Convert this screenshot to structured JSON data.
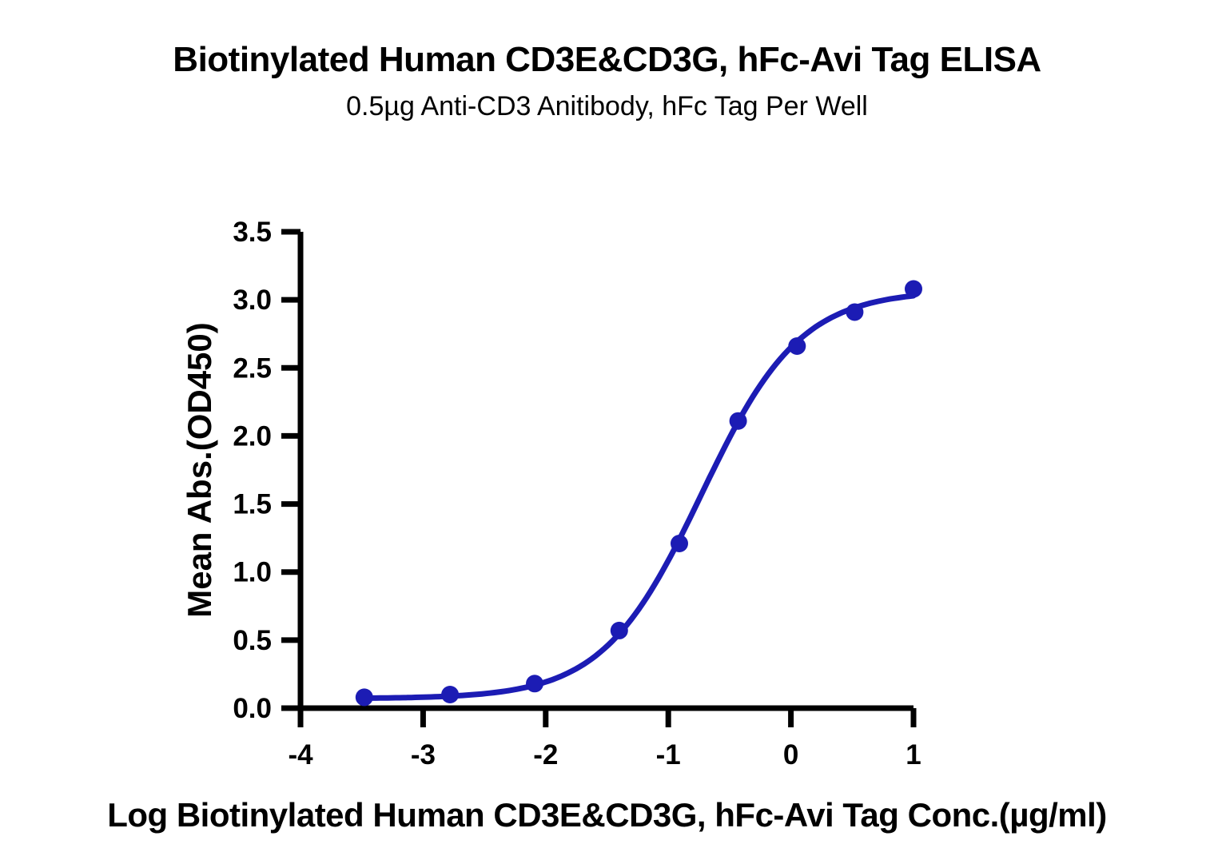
{
  "chart_data": {
    "type": "scatter",
    "title": "Biotinylated Human CD3E&CD3G, hFc-Avi Tag ELISA",
    "subtitle": "0.5µg Anti-CD3 Anitibody, hFc Tag Per Well",
    "xlabel": "Log Biotinylated Human CD3E&CD3G, hFc-Avi Tag Conc.(µg/ml)",
    "ylabel": "Mean Abs.(OD450)",
    "xlim": [
      -4,
      1
    ],
    "ylim": [
      0,
      3.5
    ],
    "x_ticks": [
      -4,
      -3,
      -2,
      -1,
      0,
      1
    ],
    "y_ticks": [
      0,
      0.5,
      1,
      1.5,
      2,
      2.5,
      3,
      3.5
    ],
    "grid": false,
    "legend": "none",
    "axis_color": "#000000",
    "background_color": "#ffffff",
    "series": [
      {
        "name": "Biotinylated Human CD3E&CD3G, hFc-Avi Tag",
        "color": "#1C1CB4",
        "marker": "circle",
        "points": [
          {
            "x": -3.48,
            "y": 0.08
          },
          {
            "x": -2.78,
            "y": 0.1
          },
          {
            "x": -2.09,
            "y": 0.18
          },
          {
            "x": -1.4,
            "y": 0.57
          },
          {
            "x": -0.91,
            "y": 1.21
          },
          {
            "x": -0.43,
            "y": 2.11
          },
          {
            "x": 0.05,
            "y": 2.66
          },
          {
            "x": 0.52,
            "y": 2.91
          },
          {
            "x": 1.0,
            "y": 3.08
          }
        ],
        "fit_curve_4pl": {
          "bottom": 0.07,
          "top": 3.07,
          "log_ec50": -0.73,
          "hill_slope": 1.08
        }
      }
    ]
  }
}
